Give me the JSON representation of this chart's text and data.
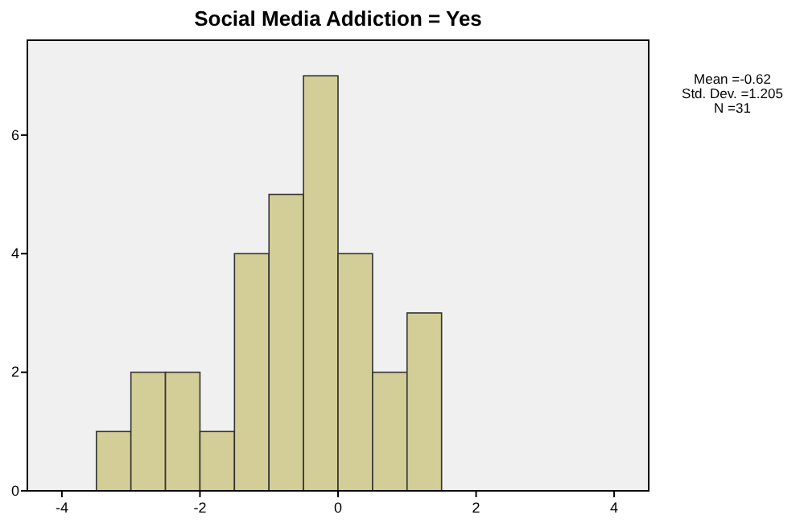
{
  "chart_data": {
    "type": "histogram",
    "title": "Social Media Addiction = Yes",
    "bins": [
      -3.5,
      -3,
      -2.5,
      -2,
      -1.5,
      -1,
      -0.5,
      0,
      0.5,
      1,
      1.5
    ],
    "values": [
      1,
      2,
      2,
      1,
      4,
      5,
      7,
      4,
      2,
      3
    ],
    "color": "#d3ce97",
    "xlim": [
      -4.5,
      4.5
    ],
    "xticks": [
      -4,
      -2,
      0,
      2,
      4
    ],
    "ylim": [
      0,
      7.6
    ],
    "yticks": [
      0,
      2,
      4,
      6
    ],
    "grid": false,
    "annotations": [
      "Mean =-0.62",
      "Std. Dev. =1.205",
      "N =31"
    ]
  }
}
